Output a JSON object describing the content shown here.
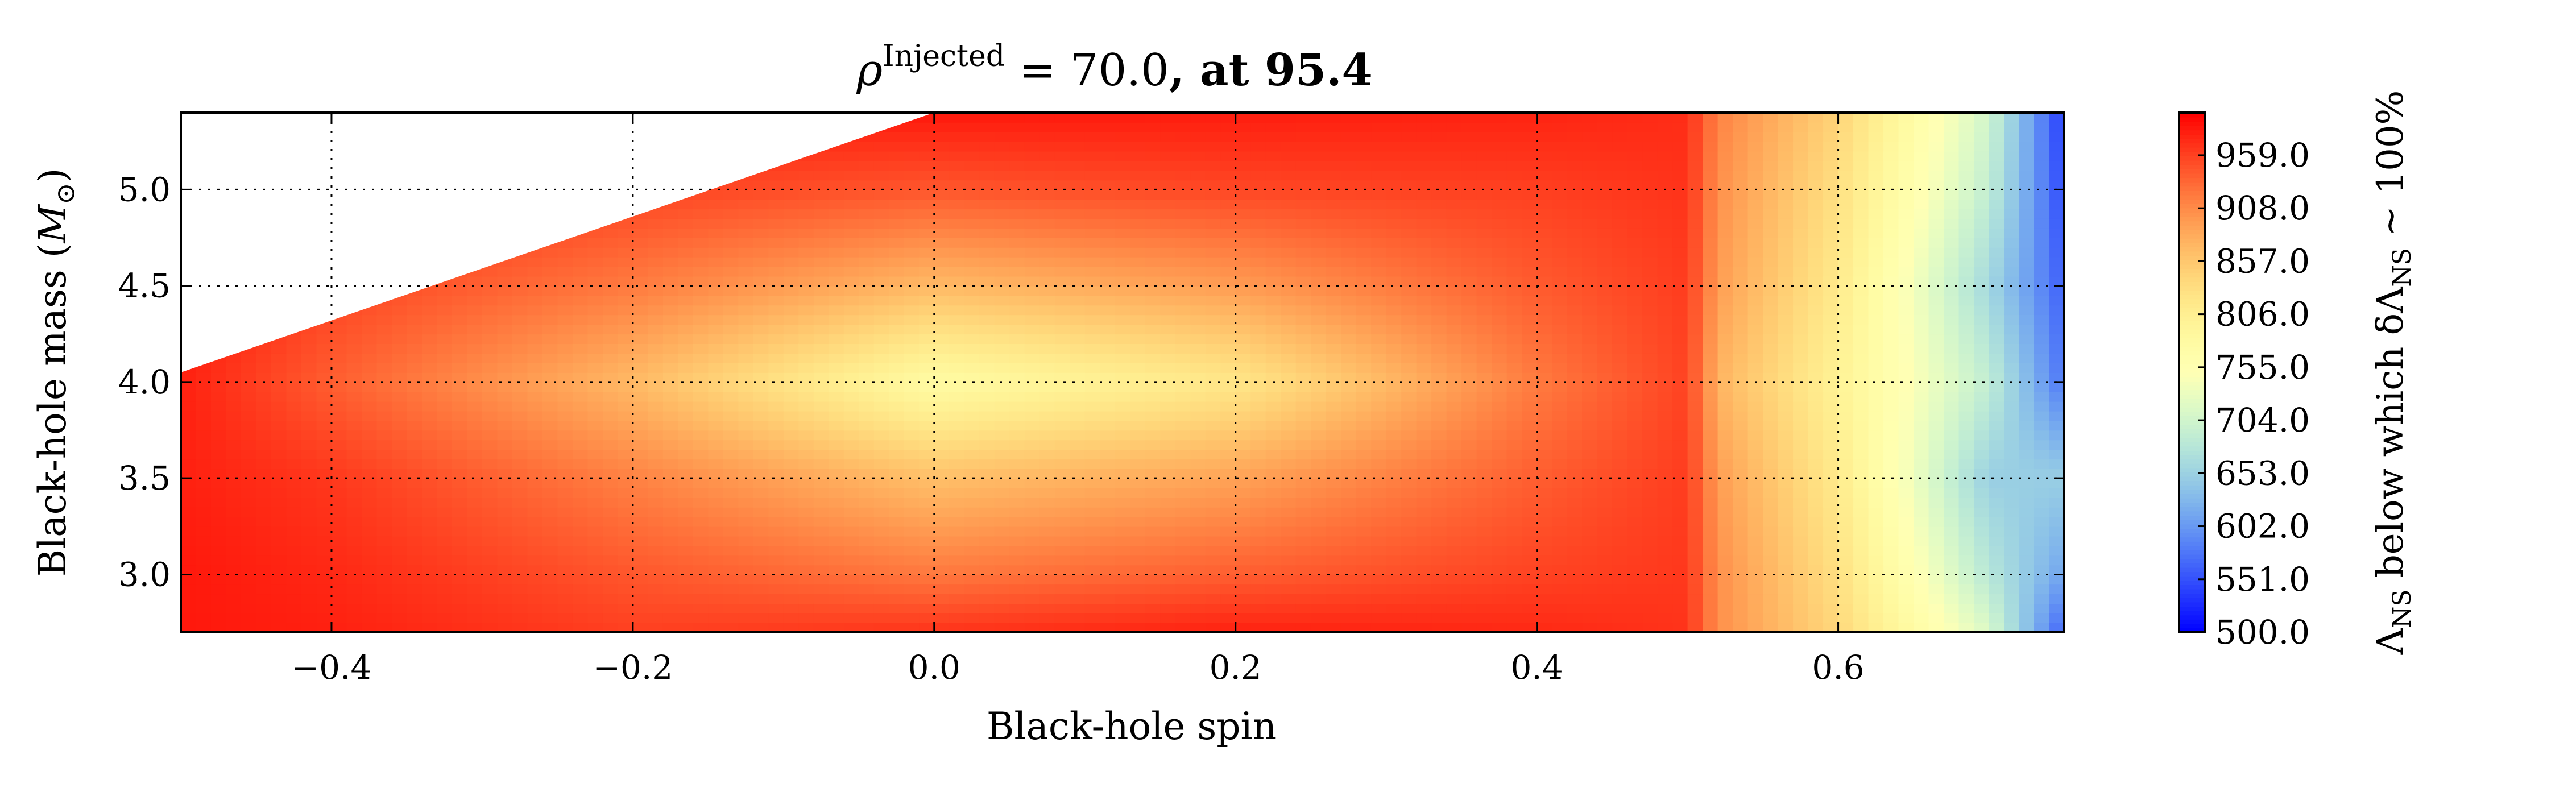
{
  "chart_data": {
    "type": "heatmap",
    "title_parts": {
      "symbol": "ρ",
      "superscript": "Injected",
      "equals": " = 70.0",
      "suffix": ", at 95.4"
    },
    "xlabel": "Black-hole spin",
    "ylabel_parts": {
      "text": "Black-hole mass (",
      "symbol": "M",
      "subscript": "⊙",
      "close": ")"
    },
    "xlim": [
      -0.5,
      0.75
    ],
    "ylim": [
      2.7,
      5.4
    ],
    "x_ticks": [
      -0.4,
      -0.2,
      0.0,
      0.2,
      0.4,
      0.6
    ],
    "x_tick_labels": [
      "−0.4",
      "−0.2",
      "0.0",
      "0.2",
      "0.4",
      "0.6"
    ],
    "y_ticks": [
      3.0,
      3.5,
      4.0,
      4.5,
      5.0
    ],
    "y_tick_labels": [
      "3.0",
      "3.5",
      "4.0",
      "4.5",
      "5.0"
    ],
    "grid": true,
    "colormap": "rainbow",
    "colorbar": {
      "min": 500.0,
      "max": 1000.0,
      "ticks": [
        500.0,
        551.0,
        602.0,
        653.0,
        704.0,
        755.0,
        806.0,
        857.0,
        908.0,
        959.0
      ],
      "tick_labels": [
        "500.0",
        "551.0",
        "602.0",
        "653.0",
        "704.0",
        "755.0",
        "806.0",
        "857.0",
        "908.0",
        "959.0"
      ],
      "label_parts": {
        "lambda": "Λ",
        "sub": "NS",
        "middle": " below which δ",
        "lambda2": "Λ",
        "sub2": "NS",
        "end": " ∼ 100%"
      }
    },
    "empty_region": {
      "description_points_x": [
        -0.5,
        0.0
      ],
      "description_points_y": [
        4.05,
        5.4
      ]
    },
    "grid_x": [
      -0.5,
      -0.4,
      -0.2,
      0.0,
      0.2,
      0.4,
      0.5,
      0.52,
      0.6,
      0.7,
      0.75
    ],
    "grid_y": [
      2.7,
      3.0,
      3.5,
      4.0,
      4.5,
      5.0,
      5.4
    ],
    "values": [
      [
        985,
        980,
        960,
        968,
        980,
        975,
        968,
        905,
        840,
        715,
        560
      ],
      [
        985,
        975,
        945,
        922,
        940,
        958,
        965,
        905,
        830,
        680,
        610
      ],
      [
        980,
        965,
        915,
        865,
        890,
        940,
        962,
        895,
        815,
        650,
        650
      ],
      [
        980,
        940,
        870,
        778,
        820,
        920,
        958,
        875,
        800,
        690,
        575
      ],
      [
        985,
        958,
        920,
        870,
        895,
        942,
        962,
        895,
        815,
        660,
        560
      ],
      [
        985,
        978,
        958,
        945,
        955,
        960,
        968,
        905,
        830,
        690,
        545
      ],
      [
        985,
        985,
        980,
        985,
        982,
        978,
        972,
        915,
        845,
        705,
        535
      ]
    ]
  }
}
